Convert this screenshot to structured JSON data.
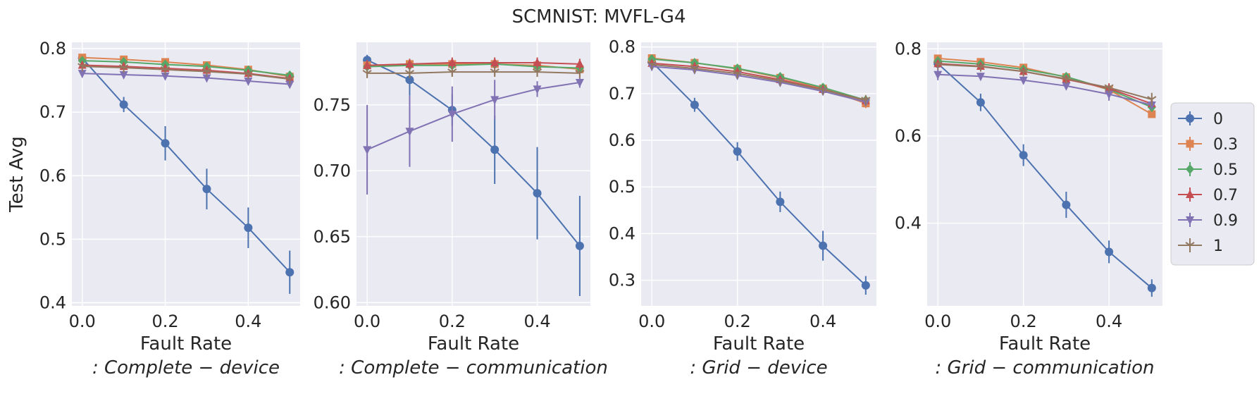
{
  "figure": {
    "title": "SCMNIST: MVFL-G4",
    "ylabel": "Test Avg"
  },
  "legend": {
    "placement": "center-right outside",
    "entries": [
      {
        "label": "0",
        "color": "#4c72b0",
        "marker": "circle"
      },
      {
        "label": "0.3",
        "color": "#dd8452",
        "marker": "square"
      },
      {
        "label": "0.5",
        "color": "#55a868",
        "marker": "diamond"
      },
      {
        "label": "0.7",
        "color": "#c44e52",
        "marker": "triangle-up"
      },
      {
        "label": "0.9",
        "color": "#8172b3",
        "marker": "triangle-down"
      },
      {
        "label": "1",
        "color": "#937860",
        "marker": "tri-down"
      }
    ]
  },
  "chart_data": [
    {
      "type": "line",
      "xlabel": "Fault Rate",
      "subtitle": ": Complete − device",
      "xlim": [
        -0.025,
        0.525
      ],
      "ylim": [
        0.395,
        0.81
      ],
      "x_ticks": [
        0.0,
        0.2,
        0.4
      ],
      "x_tick_labels": [
        "0.0",
        "0.2",
        "0.4"
      ],
      "y_ticks": [
        0.4,
        0.5,
        0.6,
        0.7,
        0.8
      ],
      "y_tick_labels": [
        "0.4",
        "0.5",
        "0.6",
        "0.7",
        "0.8"
      ],
      "x": [
        0.0,
        0.1,
        0.2,
        0.3,
        0.4,
        0.5
      ],
      "series": [
        {
          "name": "0",
          "values": [
            0.785,
            0.712,
            0.651,
            0.579,
            0.518,
            0.448
          ],
          "err": [
            0.006,
            0.012,
            0.027,
            0.032,
            0.032,
            0.034
          ]
        },
        {
          "name": "0.3",
          "values": [
            0.786,
            0.783,
            0.779,
            0.774,
            0.767,
            0.756
          ],
          "err": [
            0.003,
            0.003,
            0.003,
            0.003,
            0.003,
            0.003
          ]
        },
        {
          "name": "0.5",
          "values": [
            0.781,
            0.779,
            0.775,
            0.772,
            0.766,
            0.758
          ],
          "err": [
            0.003,
            0.003,
            0.003,
            0.003,
            0.003,
            0.003
          ]
        },
        {
          "name": "0.7",
          "values": [
            0.774,
            0.772,
            0.769,
            0.766,
            0.761,
            0.753
          ],
          "err": [
            0.003,
            0.003,
            0.003,
            0.003,
            0.003,
            0.003
          ]
        },
        {
          "name": "0.9",
          "values": [
            0.761,
            0.759,
            0.757,
            0.754,
            0.749,
            0.744
          ],
          "err": [
            0.005,
            0.004,
            0.004,
            0.004,
            0.004,
            0.004
          ]
        },
        {
          "name": "1",
          "values": [
            0.772,
            0.77,
            0.767,
            0.764,
            0.76,
            0.752
          ],
          "err": [
            0.003,
            0.003,
            0.003,
            0.003,
            0.003,
            0.003
          ]
        }
      ]
    },
    {
      "type": "line",
      "xlabel": "Fault Rate",
      "subtitle": ": Complete − communication",
      "xlim": [
        -0.025,
        0.525
      ],
      "ylim": [
        0.5975,
        0.7975
      ],
      "x_ticks": [
        0.0,
        0.2,
        0.4
      ],
      "x_tick_labels": [
        "0.0",
        "0.2",
        "0.4"
      ],
      "y_ticks": [
        0.6,
        0.65,
        0.7,
        0.75
      ],
      "y_tick_labels": [
        "0.60",
        "0.65",
        "0.70",
        "0.75"
      ],
      "x": [
        0.0,
        0.1,
        0.2,
        0.3,
        0.4,
        0.5
      ],
      "series": [
        {
          "name": "0",
          "values": [
            0.784,
            0.769,
            0.746,
            0.716,
            0.683,
            0.643
          ],
          "err": [
            0.004,
            0.012,
            0.012,
            0.026,
            0.035,
            0.038
          ]
        },
        {
          "name": "0.3",
          "values": [
            0.78,
            0.781,
            0.781,
            0.781,
            0.78,
            0.777
          ],
          "err": [
            0.003,
            0.003,
            0.003,
            0.003,
            0.003,
            0.003
          ]
        },
        {
          "name": "0.5",
          "values": [
            0.779,
            0.78,
            0.78,
            0.781,
            0.779,
            0.778
          ],
          "err": [
            0.003,
            0.003,
            0.003,
            0.003,
            0.003,
            0.003
          ]
        },
        {
          "name": "0.7",
          "values": [
            0.78,
            0.781,
            0.782,
            0.782,
            0.782,
            0.781
          ],
          "err": [
            0.004,
            0.004,
            0.004,
            0.004,
            0.004,
            0.004
          ]
        },
        {
          "name": "0.9",
          "values": [
            0.716,
            0.73,
            0.743,
            0.754,
            0.762,
            0.767
          ],
          "err": [
            0.034,
            0.027,
            0.021,
            0.015,
            0.006,
            0.004
          ]
        },
        {
          "name": "1",
          "values": [
            0.774,
            0.774,
            0.775,
            0.775,
            0.775,
            0.774
          ],
          "err": [
            0.003,
            0.003,
            0.003,
            0.003,
            0.003,
            0.003
          ]
        }
      ]
    },
    {
      "type": "line",
      "xlabel": "Fault Rate",
      "subtitle": ": Grid − device",
      "xlim": [
        -0.025,
        0.525
      ],
      "ylim": [
        0.245,
        0.81
      ],
      "x_ticks": [
        0.0,
        0.2,
        0.4
      ],
      "x_tick_labels": [
        "0.0",
        "0.2",
        "0.4"
      ],
      "y_ticks": [
        0.3,
        0.4,
        0.5,
        0.6,
        0.7,
        0.8
      ],
      "y_tick_labels": [
        "0.3",
        "0.4",
        "0.5",
        "0.6",
        "0.7",
        "0.8"
      ],
      "x": [
        0.0,
        0.1,
        0.2,
        0.3,
        0.4,
        0.5
      ],
      "series": [
        {
          "name": "0",
          "values": [
            0.768,
            0.676,
            0.576,
            0.468,
            0.374,
            0.289
          ],
          "err": [
            0.006,
            0.015,
            0.02,
            0.022,
            0.032,
            0.02
          ]
        },
        {
          "name": "0.3",
          "values": [
            0.776,
            0.766,
            0.753,
            0.734,
            0.711,
            0.679
          ],
          "err": [
            0.004,
            0.004,
            0.004,
            0.004,
            0.004,
            0.01
          ]
        },
        {
          "name": "0.5",
          "values": [
            0.774,
            0.766,
            0.754,
            0.736,
            0.713,
            0.686
          ],
          "err": [
            0.004,
            0.004,
            0.004,
            0.004,
            0.004,
            0.007
          ]
        },
        {
          "name": "0.7",
          "values": [
            0.765,
            0.758,
            0.747,
            0.73,
            0.709,
            0.685
          ],
          "err": [
            0.004,
            0.004,
            0.004,
            0.004,
            0.004,
            0.006
          ]
        },
        {
          "name": "0.9",
          "values": [
            0.758,
            0.751,
            0.739,
            0.724,
            0.705,
            0.682
          ],
          "err": [
            0.004,
            0.004,
            0.004,
            0.004,
            0.004,
            0.006
          ]
        },
        {
          "name": "1",
          "values": [
            0.762,
            0.754,
            0.743,
            0.727,
            0.708,
            0.686
          ],
          "err": [
            0.004,
            0.004,
            0.004,
            0.004,
            0.004,
            0.011
          ]
        }
      ]
    },
    {
      "type": "line",
      "xlabel": "Fault Rate",
      "subtitle": ": Grid − communication",
      "xlim": [
        -0.025,
        0.525
      ],
      "ylim": [
        0.21,
        0.815
      ],
      "x_ticks": [
        0.0,
        0.2,
        0.4
      ],
      "x_tick_labels": [
        "0.0",
        "0.2",
        "0.4"
      ],
      "y_ticks": [
        0.4,
        0.6,
        0.8
      ],
      "y_tick_labels": [
        "0.4",
        "0.6",
        "0.8"
      ],
      "x": [
        0.0,
        0.1,
        0.2,
        0.3,
        0.4,
        0.5
      ],
      "series": [
        {
          "name": "0",
          "values": [
            0.766,
            0.677,
            0.556,
            0.442,
            0.334,
            0.251
          ],
          "err": [
            0.008,
            0.02,
            0.025,
            0.03,
            0.026,
            0.02
          ]
        },
        {
          "name": "0.3",
          "values": [
            0.778,
            0.77,
            0.757,
            0.735,
            0.706,
            0.65
          ],
          "err": [
            0.005,
            0.005,
            0.005,
            0.005,
            0.005,
            0.006
          ]
        },
        {
          "name": "0.5",
          "values": [
            0.772,
            0.765,
            0.753,
            0.736,
            0.707,
            0.666
          ],
          "err": [
            0.005,
            0.005,
            0.005,
            0.005,
            0.005,
            0.006
          ]
        },
        {
          "name": "0.7",
          "values": [
            0.766,
            0.76,
            0.748,
            0.73,
            0.709,
            0.674
          ],
          "err": [
            0.005,
            0.005,
            0.005,
            0.005,
            0.012,
            0.008
          ]
        },
        {
          "name": "0.9",
          "values": [
            0.741,
            0.737,
            0.728,
            0.715,
            0.696,
            0.671
          ],
          "err": [
            0.013,
            0.008,
            0.008,
            0.008,
            0.015,
            0.01
          ]
        },
        {
          "name": "1",
          "values": [
            0.764,
            0.759,
            0.748,
            0.731,
            0.711,
            0.684
          ],
          "err": [
            0.005,
            0.005,
            0.005,
            0.005,
            0.005,
            0.015
          ]
        }
      ]
    }
  ]
}
